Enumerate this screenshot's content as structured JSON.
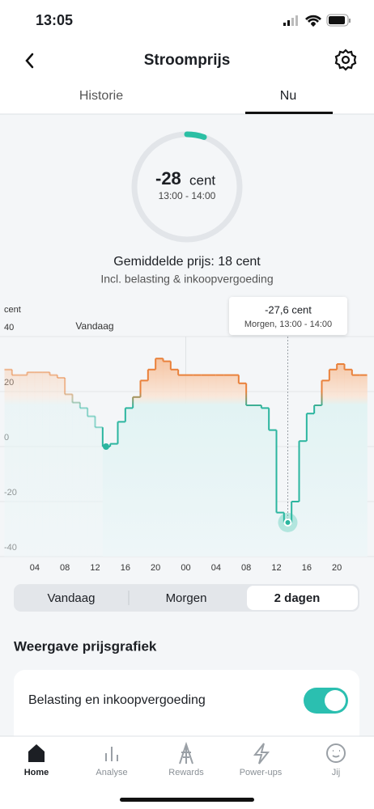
{
  "status_bar": {
    "time": "13:05"
  },
  "header": {
    "title": "Stroomprijs"
  },
  "tabs": [
    "Historie",
    "Nu"
  ],
  "current": {
    "value": "-28",
    "unit": "cent",
    "period": "13:00 - 14:00"
  },
  "average": {
    "text": "Gemiddelde prijs: 18 cent",
    "subtitle": "Incl. belasting & inkoopvergoeding"
  },
  "chart_data": {
    "type": "step",
    "y_label": "cent",
    "annotation": "Vandaag",
    "x": [
      0,
      1,
      2,
      3,
      4,
      5,
      6,
      7,
      8,
      9,
      10,
      11,
      12,
      13,
      14,
      15,
      16,
      17,
      18,
      19,
      20,
      21,
      22,
      23,
      24,
      25,
      26,
      27,
      28,
      29,
      30,
      31,
      32,
      33,
      34,
      35,
      36,
      37,
      38,
      39,
      40,
      41,
      42,
      43,
      44,
      45,
      46,
      47
    ],
    "values": [
      28,
      26,
      26,
      27,
      27,
      27,
      26,
      25,
      19,
      16,
      14,
      11,
      7,
      0,
      1,
      9,
      14,
      18,
      24,
      28,
      32,
      31,
      28,
      26,
      26,
      26,
      26,
      26,
      26,
      26,
      26,
      23,
      15,
      15,
      14,
      6,
      -24,
      -27.6,
      -20,
      2,
      12,
      15,
      24,
      28,
      30,
      28,
      26,
      26
    ],
    "xlim": [
      0,
      48
    ],
    "ylim": [
      -40,
      40
    ],
    "yticks": [
      40,
      20,
      0,
      -20,
      -40
    ],
    "xticks": [
      {
        "value": 4,
        "label": "04"
      },
      {
        "value": 8,
        "label": "08"
      },
      12,
      16,
      20,
      {
        "value": 24,
        "label": "00"
      },
      {
        "value": 28,
        "label": "04"
      },
      {
        "value": 32,
        "label": "08"
      },
      {
        "value": 36,
        "label": "12"
      },
      {
        "value": 40,
        "label": "16"
      },
      {
        "value": 44,
        "label": "20"
      }
    ],
    "tooltip": {
      "label": "-27,6 cent",
      "subtitle": "Morgen, 13:00 - 14:00"
    }
  },
  "range_selector": [
    "Vandaag",
    "Morgen",
    "2 dagen"
  ],
  "settings": {
    "title": "Weergave prijsgrafiek",
    "toggle_label": "Belasting en inkoopvergoeding"
  },
  "nav": [
    "Home",
    "Analyse",
    "Rewards",
    "Power-ups",
    "Jij"
  ]
}
